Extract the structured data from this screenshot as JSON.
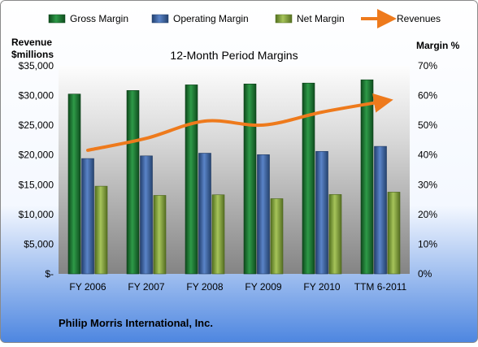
{
  "chart_data": {
    "type": "bar",
    "title": "12-Month Period Margins",
    "company": "Philip Morris International, Inc.",
    "left_axis_label_line1": "Revenue",
    "left_axis_label_line2": "$millions",
    "right_axis_label": "Margin %",
    "categories": [
      "FY 2006",
      "FY 2007",
      "FY 2008",
      "FY 2009",
      "FY 2010",
      "TTM 6-2011"
    ],
    "series": [
      {
        "name": "Gross Margin",
        "type": "bar",
        "axis": "right",
        "color": "#1e7a32",
        "values": [
          60.5,
          61.7,
          63.6,
          63.9,
          64.2,
          65.3
        ]
      },
      {
        "name": "Operating Margin",
        "type": "bar",
        "axis": "right",
        "color": "#3f66a8",
        "values": [
          38.8,
          39.7,
          40.6,
          40.1,
          41.2,
          42.9
        ]
      },
      {
        "name": "Net Margin",
        "type": "bar",
        "axis": "right",
        "color": "#86a63a",
        "values": [
          29.5,
          26.4,
          26.6,
          25.3,
          26.7,
          27.5
        ]
      },
      {
        "name": "Revenues",
        "type": "line",
        "axis": "left",
        "color": "#ee7a1c",
        "values": [
          20794,
          22801,
          25705,
          25035,
          27208,
          28934
        ]
      }
    ],
    "left_ticks": [
      "$-",
      "$5,000",
      "$10,000",
      "$15,000",
      "$20,000",
      "$25,000",
      "$30,000",
      "$35,000"
    ],
    "right_ticks": [
      "0%",
      "10%",
      "20%",
      "30%",
      "40%",
      "50%",
      "60%",
      "70%"
    ],
    "ylim_left": [
      0,
      35000
    ],
    "ylim_right": [
      0,
      70
    ],
    "legend_position": "top",
    "grid": false
  }
}
